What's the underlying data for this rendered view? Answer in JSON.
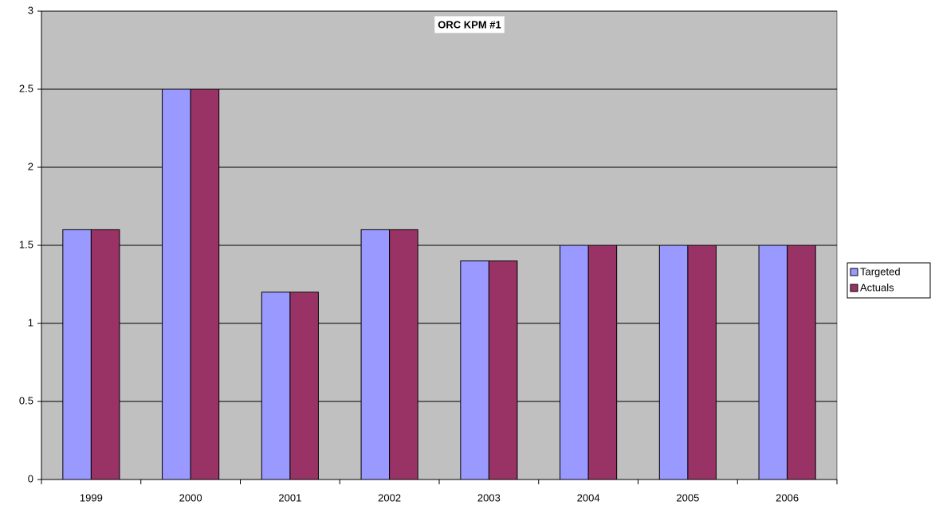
{
  "chart_data": {
    "type": "bar",
    "title": "ORC KPM #1",
    "categories": [
      "1999",
      "2000",
      "2001",
      "2002",
      "2003",
      "2004",
      "2005",
      "2006"
    ],
    "series": [
      {
        "name": "Targeted",
        "color": "#9999ff",
        "values": [
          1.6,
          2.5,
          1.2,
          1.6,
          1.4,
          1.5,
          1.5,
          1.5
        ]
      },
      {
        "name": "Actuals",
        "color": "#993366",
        "values": [
          1.6,
          2.5,
          1.2,
          1.6,
          1.4,
          1.5,
          1.5,
          1.5
        ]
      }
    ],
    "ylim": [
      0,
      3
    ],
    "yticks": [
      0,
      0.5,
      1,
      1.5,
      2,
      2.5,
      3
    ],
    "grid": true,
    "legend": "right"
  }
}
